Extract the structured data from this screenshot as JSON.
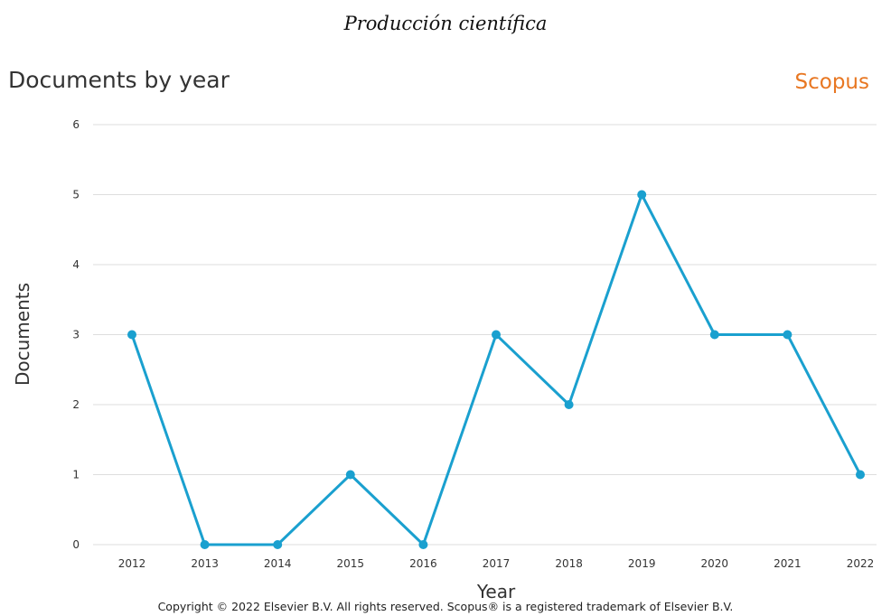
{
  "page": {
    "title": "Producción científica",
    "brand": "Scopus",
    "copyright": "Copyright © 2022 Elsevier B.V. All rights reserved. Scopus® is a registered trademark of Elsevier B.V."
  },
  "chart_data": {
    "type": "line",
    "title": "Documents by year",
    "xlabel": "Year",
    "ylabel": "Documents",
    "ylim": [
      0,
      6
    ],
    "yticks": [
      "0",
      "1",
      "2",
      "3",
      "4",
      "5",
      "6"
    ],
    "grid": true,
    "line_color": "#1aa0cf",
    "categories": [
      "2012",
      "2013",
      "2014",
      "2015",
      "2016",
      "2017",
      "2018",
      "2019",
      "2020",
      "2021",
      "2022"
    ],
    "series": [
      {
        "values": [
          3,
          0,
          0,
          1,
          0,
          3,
          2,
          5,
          3,
          3,
          1
        ]
      }
    ]
  }
}
